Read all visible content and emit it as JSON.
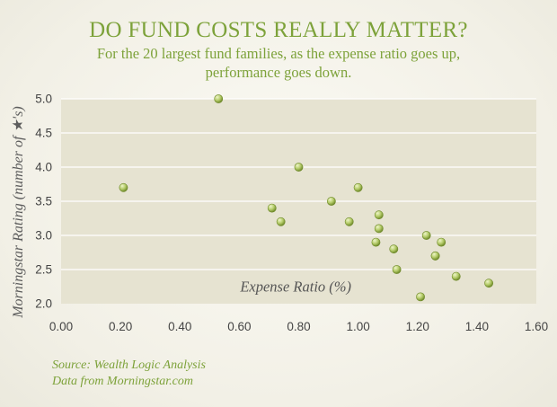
{
  "header": {
    "title": "DO FUND COSTS REALLY MATTER?",
    "subtitle_line1": "For the 20 largest fund families, as the expense ratio goes up,",
    "subtitle_line2": "performance goes down."
  },
  "footer": {
    "source_line1": "Source: Wealth Logic Analysis",
    "source_line2": "Data from Morningstar.com"
  },
  "colors": {
    "accent": "#7da23a",
    "plot_bg": "#e6e3d1",
    "grid": "#ffffff",
    "point": "#b5cc6a",
    "point_edge": "#6f8a2a"
  },
  "chart_data": {
    "type": "scatter",
    "title": "DO FUND COSTS REALLY MATTER?",
    "subtitle": "For the 20 largest fund families, as the expense ratio goes up, performance goes down.",
    "xlabel": "Expense Ratio (%)",
    "ylabel": "Morningstar Rating (number of ★'s)",
    "xlim": [
      0.0,
      1.6
    ],
    "ylim": [
      2.0,
      5.0
    ],
    "x_ticks": [
      "0.00",
      "0.20",
      "0.40",
      "0.60",
      "0.80",
      "1.00",
      "1.20",
      "1.40",
      "1.60"
    ],
    "y_ticks": [
      "2.0",
      "2.5",
      "3.0",
      "3.5",
      "4.0",
      "4.5",
      "5.0"
    ],
    "grid": "horizontal",
    "legend": "none",
    "points": [
      {
        "x": 0.21,
        "y": 3.7
      },
      {
        "x": 0.53,
        "y": 5.0
      },
      {
        "x": 0.71,
        "y": 3.4
      },
      {
        "x": 0.74,
        "y": 3.2
      },
      {
        "x": 0.8,
        "y": 4.0
      },
      {
        "x": 0.91,
        "y": 3.5
      },
      {
        "x": 0.97,
        "y": 3.2
      },
      {
        "x": 1.0,
        "y": 3.7
      },
      {
        "x": 1.06,
        "y": 2.9
      },
      {
        "x": 1.07,
        "y": 3.3
      },
      {
        "x": 1.07,
        "y": 3.1
      },
      {
        "x": 1.12,
        "y": 2.8
      },
      {
        "x": 1.13,
        "y": 2.5
      },
      {
        "x": 1.21,
        "y": 2.1
      },
      {
        "x": 1.23,
        "y": 3.0
      },
      {
        "x": 1.26,
        "y": 2.7
      },
      {
        "x": 1.26,
        "y": 2.7
      },
      {
        "x": 1.28,
        "y": 2.9
      },
      {
        "x": 1.33,
        "y": 2.4
      },
      {
        "x": 1.44,
        "y": 2.3
      }
    ]
  }
}
